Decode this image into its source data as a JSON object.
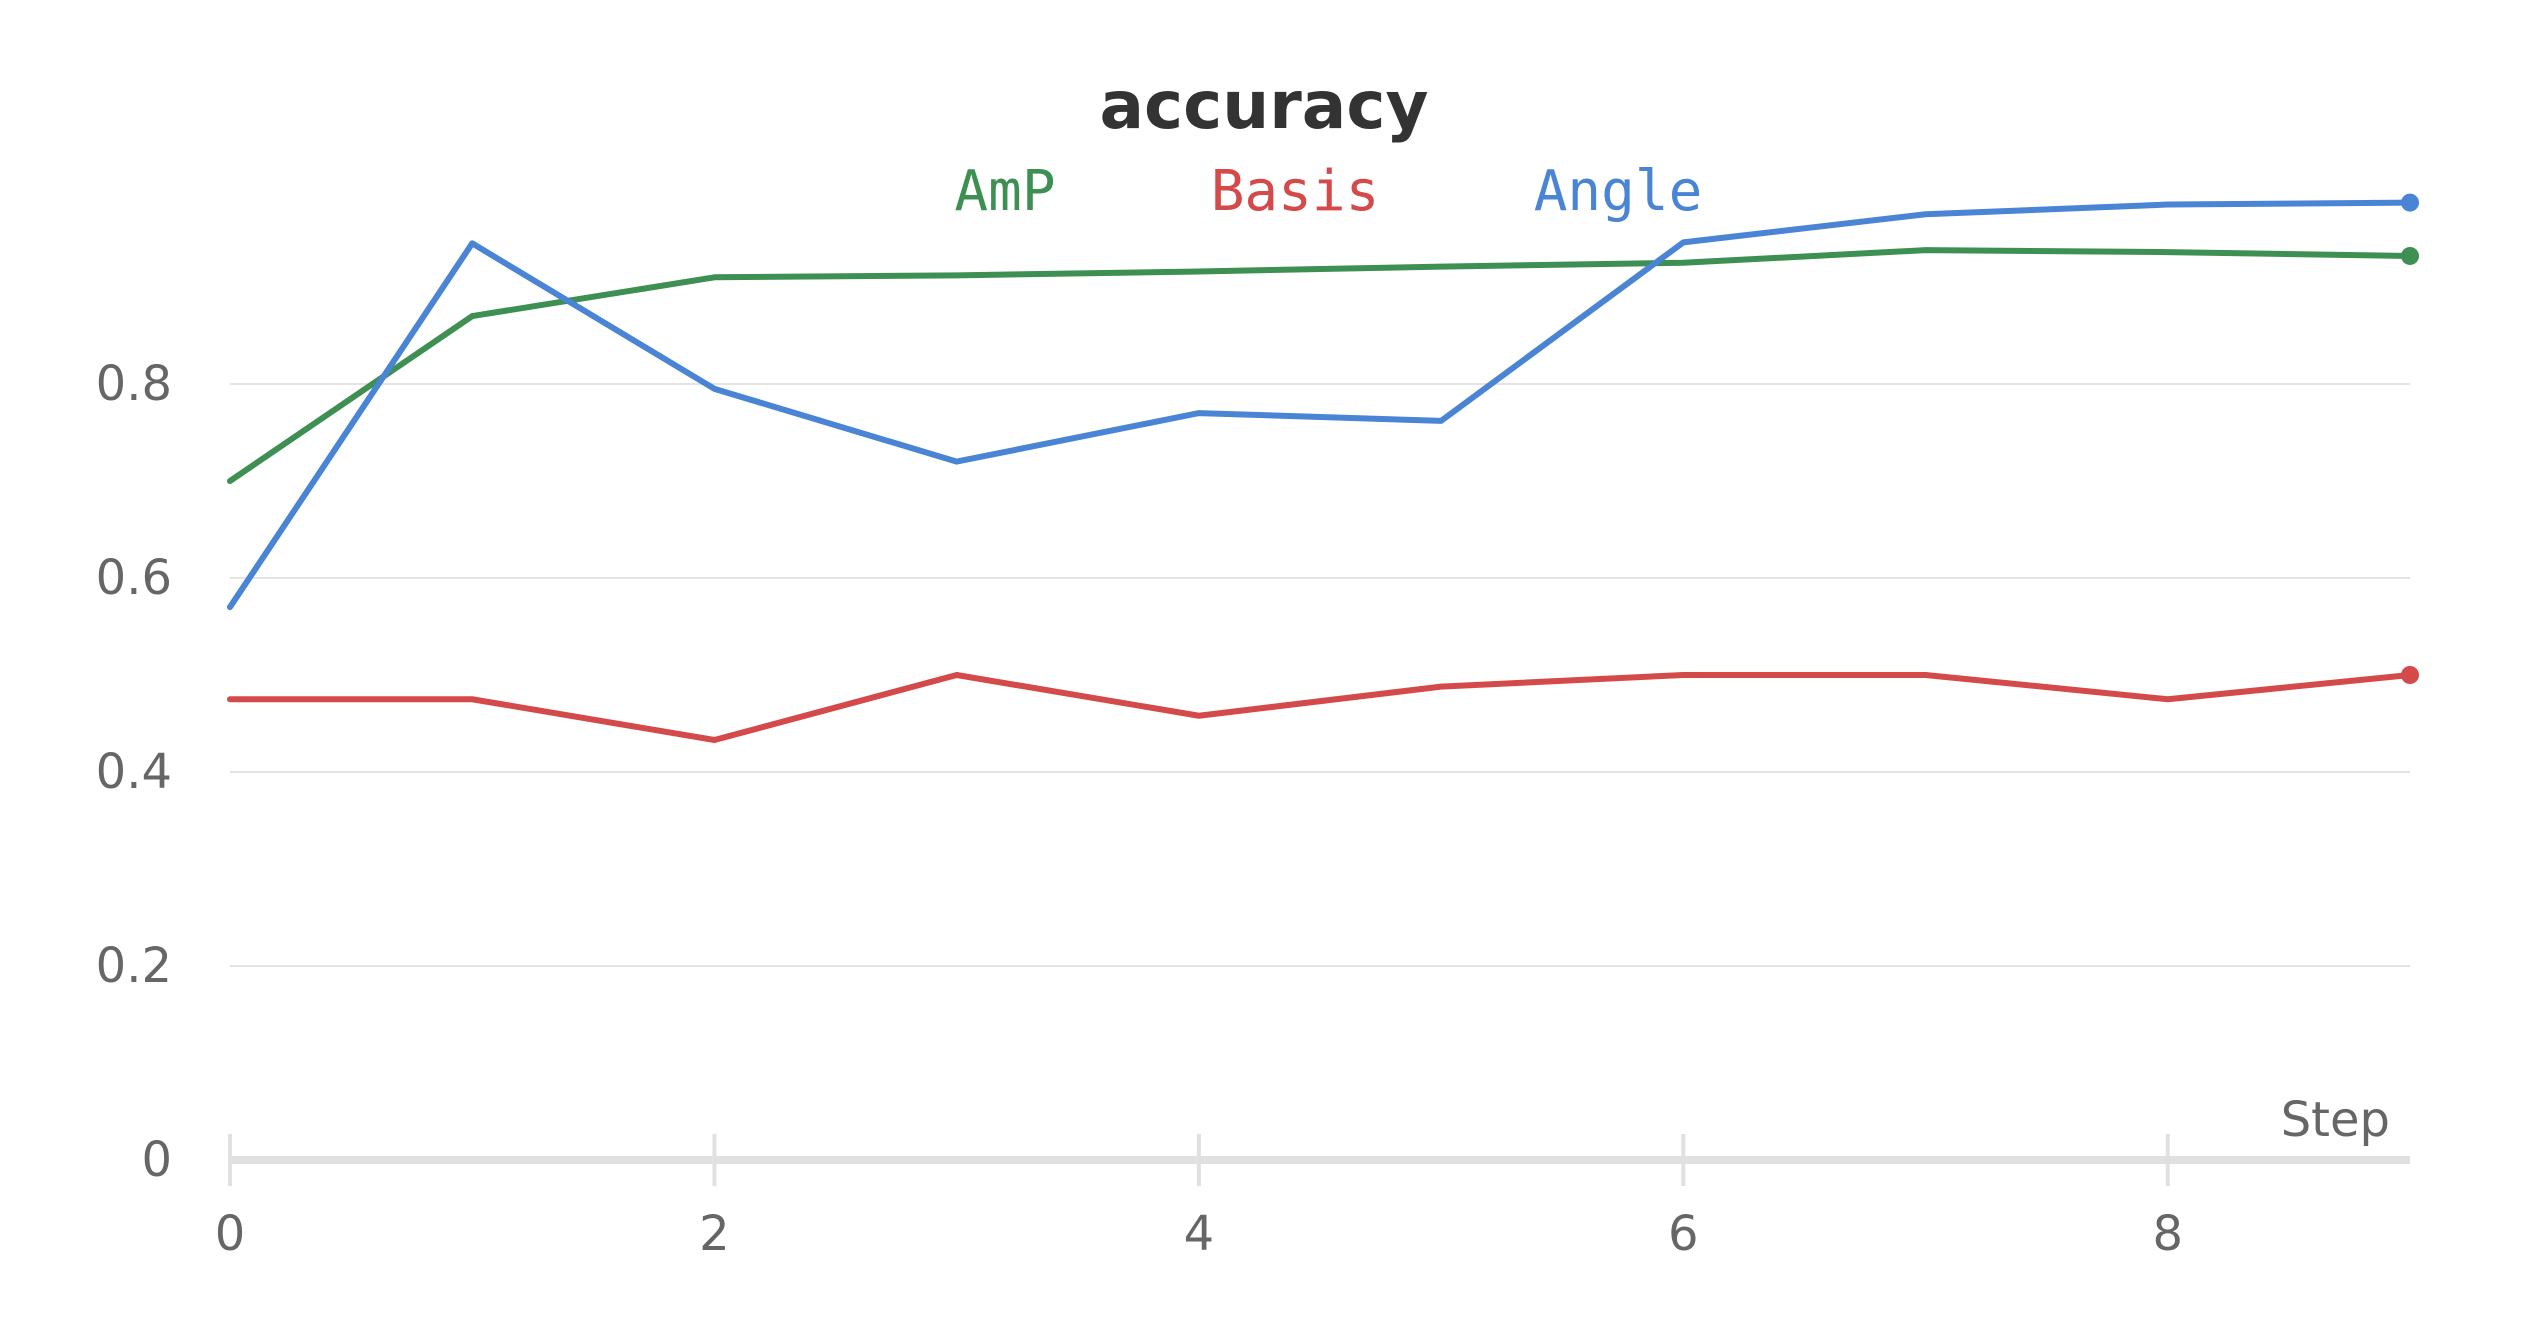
{
  "chart_data": {
    "type": "line",
    "title": "accuracy",
    "xlabel": "Step",
    "ylabel": "",
    "x": [
      0,
      1,
      2,
      3,
      4,
      5,
      6,
      7,
      8,
      9
    ],
    "xlim": [
      0,
      9
    ],
    "ylim": [
      0,
      1
    ],
    "x_ticks": [
      "0",
      "2",
      "4",
      "6",
      "8"
    ],
    "y_ticks": [
      "0",
      "0.2",
      "0.4",
      "0.6",
      "0.8"
    ],
    "grid": true,
    "legend_position": "top-center",
    "series": [
      {
        "name": "AmP",
        "color": "#3d8f52",
        "values": [
          0.7,
          0.87,
          0.91,
          0.912,
          0.916,
          0.921,
          0.925,
          0.938,
          0.936,
          0.932
        ]
      },
      {
        "name": "Basis",
        "color": "#d44a4a",
        "values": [
          0.475,
          0.475,
          0.433,
          0.5,
          0.458,
          0.488,
          0.5,
          0.5,
          0.475,
          0.5
        ]
      },
      {
        "name": "Angle",
        "color": "#4a84d4",
        "values": [
          0.57,
          0.945,
          0.795,
          0.72,
          0.77,
          0.762,
          0.946,
          0.975,
          0.985,
          0.987
        ]
      }
    ]
  }
}
